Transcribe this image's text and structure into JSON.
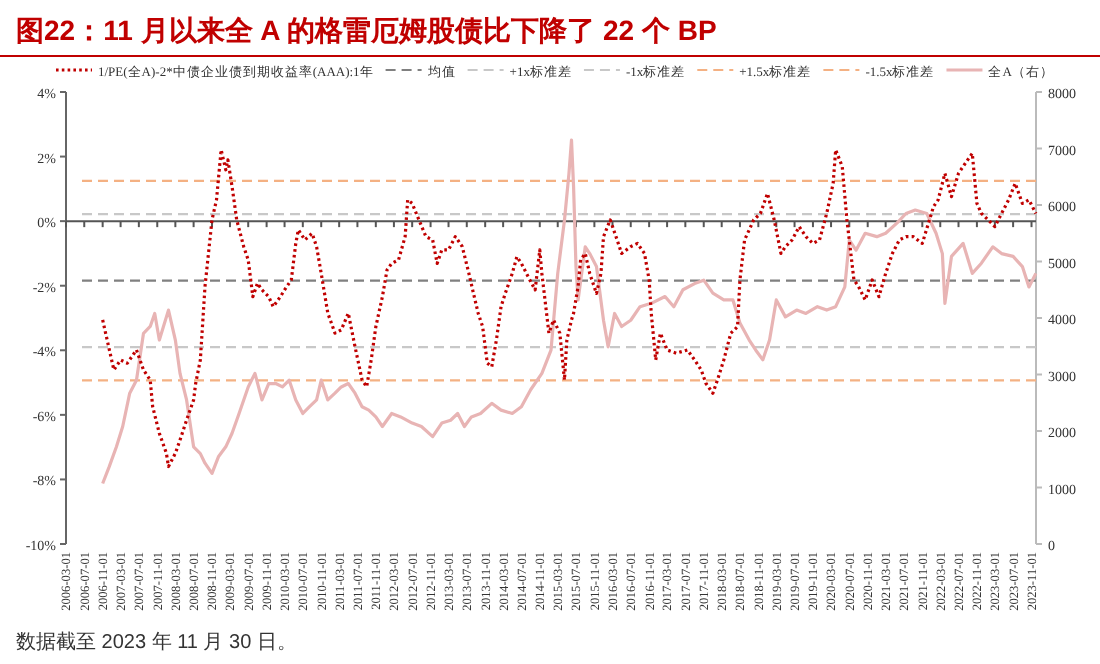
{
  "chart_data": {
    "type": "line",
    "title": "图22：11 月以来全 A 的格雷厄姆股债比下降了 22 个 BP",
    "annotations": [
      "数据截至 2023 年 11 月 30 日。"
    ],
    "legend": "top",
    "xlim": [
      "2006-03-01",
      "2023-12-01"
    ],
    "xticks": [
      "2006-03-01",
      "2006-07-01",
      "2006-11-01",
      "2007-03-01",
      "2007-07-01",
      "2007-11-01",
      "2008-03-01",
      "2008-07-01",
      "2008-11-01",
      "2009-03-01",
      "2009-07-01",
      "2009-11-01",
      "2010-03-01",
      "2010-07-01",
      "2010-11-01",
      "2011-03-01",
      "2011-07-01",
      "2011-11-01",
      "2012-03-01",
      "2012-07-01",
      "2012-11-01",
      "2013-03-01",
      "2013-07-01",
      "2013-11-01",
      "2014-03-01",
      "2014-07-01",
      "2014-11-01",
      "2015-03-01",
      "2015-07-01",
      "2015-11-01",
      "2016-03-01",
      "2016-07-01",
      "2016-11-01",
      "2017-03-01",
      "2017-07-01",
      "2017-11-01",
      "2018-03-01",
      "2018-07-01",
      "2018-11-01",
      "2019-03-01",
      "2019-07-01",
      "2019-11-01",
      "2020-03-01",
      "2020-07-01",
      "2020-11-01",
      "2021-03-01",
      "2021-07-01",
      "2021-11-01",
      "2022-03-01",
      "2022-07-01",
      "2022-11-01",
      "2023-03-01",
      "2023-07-01",
      "2023-11-01"
    ],
    "ylim": [
      -10,
      4
    ],
    "yticks": [
      {
        "value": -10,
        "label": "-10%"
      },
      {
        "value": -8,
        "label": "-8%"
      },
      {
        "value": -6,
        "label": "-6%"
      },
      {
        "value": -4,
        "label": "-4%"
      },
      {
        "value": -2,
        "label": "-2%"
      },
      {
        "value": 0,
        "label": "0%"
      },
      {
        "value": 2,
        "label": "2%"
      },
      {
        "value": 4,
        "label": "4%"
      }
    ],
    "y2lim": [
      0,
      8000
    ],
    "y2ticks": [
      0,
      1000,
      2000,
      3000,
      4000,
      5000,
      6000,
      7000,
      8000
    ],
    "series": [
      {
        "name": "1/PE(全A)-2*中债企业债到期收益率(AAA):1年",
        "line_style": "dotted",
        "color": "#c00000",
        "x": [
          "2006-11-01",
          "2006-12-01",
          "2007-01-15",
          "2007-03-01",
          "2007-04-15",
          "2007-06-15",
          "2007-08-01",
          "2007-09-15",
          "2007-10-01",
          "2007-11-15",
          "2008-01-01",
          "2008-01-15",
          "2008-03-01",
          "2008-04-01",
          "2008-05-15",
          "2008-07-01",
          "2008-07-15",
          "2008-08-15",
          "2008-09-01",
          "2008-09-15",
          "2008-11-01",
          "2008-12-01",
          "2009-01-01",
          "2009-02-01",
          "2009-02-15",
          "2009-03-15",
          "2009-04-15",
          "2009-06-01",
          "2009-07-01",
          "2009-08-01",
          "2009-09-01",
          "2009-10-01",
          "2009-11-15",
          "2009-12-15",
          "2010-02-01",
          "2010-03-01",
          "2010-04-15",
          "2010-05-15",
          "2010-06-01",
          "2010-07-15",
          "2010-09-01",
          "2010-10-01",
          "2010-11-01",
          "2010-12-15",
          "2011-02-01",
          "2011-03-15",
          "2011-05-01",
          "2011-06-15",
          "2011-08-01",
          "2011-09-01",
          "2011-10-01",
          "2011-11-01",
          "2011-12-15",
          "2012-01-15",
          "2012-02-15",
          "2012-04-01",
          "2012-05-15",
          "2012-06-01",
          "2012-07-01",
          "2012-08-15",
          "2012-10-01",
          "2012-11-15",
          "2012-12-15",
          "2013-01-15",
          "2013-03-01",
          "2013-04-15",
          "2013-05-01",
          "2013-06-01",
          "2013-07-15",
          "2013-08-15",
          "2013-09-15",
          "2013-10-15",
          "2013-11-15",
          "2013-12-15",
          "2014-01-15",
          "2014-02-15",
          "2014-03-15",
          "2014-05-01",
          "2014-06-01",
          "2014-07-01",
          "2014-08-15",
          "2014-10-01",
          "2014-11-01",
          "2014-11-15",
          "2015-01-01",
          "2015-02-01",
          "2015-03-15",
          "2015-04-15",
          "2015-05-01",
          "2015-06-01",
          "2015-06-15",
          "2015-07-15",
          "2015-08-01",
          "2015-09-01",
          "2015-10-01",
          "2015-11-15",
          "2015-12-15",
          "2016-01-01",
          "2016-02-15",
          "2016-04-01",
          "2016-05-01",
          "2016-07-01",
          "2016-08-15",
          "2016-10-01",
          "2016-11-01",
          "2016-11-15",
          "2016-12-15",
          "2017-01-15",
          "2017-03-01",
          "2017-05-01",
          "2017-07-15",
          "2017-09-01",
          "2017-10-15",
          "2017-11-15",
          "2018-01-01",
          "2018-02-01",
          "2018-03-15",
          "2018-05-01",
          "2018-06-15",
          "2018-07-01",
          "2018-08-01",
          "2018-09-01",
          "2018-10-01",
          "2018-11-15",
          "2019-01-01",
          "2019-02-15",
          "2019-04-01",
          "2019-05-01",
          "2019-06-15",
          "2019-08-01",
          "2019-09-15",
          "2019-11-01",
          "2019-12-15",
          "2020-02-01",
          "2020-03-15",
          "2020-04-01",
          "2020-05-15",
          "2020-06-15",
          "2020-08-01",
          "2020-09-01",
          "2020-10-15",
          "2020-12-01",
          "2021-01-15",
          "2021-03-01",
          "2021-04-15",
          "2021-06-01",
          "2021-07-15",
          "2021-09-01",
          "2021-11-01",
          "2022-01-15",
          "2022-02-15",
          "2022-04-01",
          "2022-05-15",
          "2022-07-01",
          "2022-08-15",
          "2022-10-01",
          "2022-11-01",
          "2022-12-01",
          "2023-01-15",
          "2023-03-01",
          "2023-04-15",
          "2023-06-01",
          "2023-07-15",
          "2023-09-01",
          "2023-10-15",
          "2023-11-30"
        ],
        "values": [
          -3.06,
          -3.68,
          -4.61,
          -4.3,
          -4.4,
          -3.99,
          -4.61,
          -4.92,
          -5.74,
          -6.57,
          -7.19,
          -7.6,
          -7.19,
          -6.78,
          -6.16,
          -5.54,
          -5.02,
          -4.3,
          -3.06,
          -2.03,
          0.04,
          0.66,
          2.21,
          1.59,
          1.9,
          1.07,
          0.04,
          -0.79,
          -1.2,
          -2.34,
          -1.92,
          -2.13,
          -2.34,
          -2.65,
          -2.34,
          -2.13,
          -1.82,
          -0.69,
          -0.27,
          -0.58,
          -0.38,
          -0.79,
          -1.62,
          -2.85,
          -3.47,
          -3.37,
          -2.85,
          -3.89,
          -4.92,
          -5.13,
          -4.3,
          -3.27,
          -2.34,
          -1.51,
          -1.31,
          -1.2,
          -0.48,
          0.66,
          0.55,
          0.04,
          -0.48,
          -0.58,
          -1.31,
          -0.89,
          -0.89,
          -0.48,
          -0.58,
          -0.79,
          -1.62,
          -2.24,
          -2.85,
          -3.27,
          -4.4,
          -4.51,
          -3.68,
          -2.65,
          -2.24,
          -1.62,
          -1.1,
          -1.31,
          -1.72,
          -2.13,
          -0.89,
          -1.62,
          -3.47,
          -3.06,
          -3.47,
          -4.92,
          -3.68,
          -3.06,
          -2.85,
          -2.03,
          -1.2,
          -1.0,
          -1.62,
          -2.24,
          -1.62,
          -0.48,
          0.04,
          -0.58,
          -1.0,
          -0.79,
          -0.69,
          -1.0,
          -1.82,
          -2.85,
          -4.3,
          -3.47,
          -3.99,
          -4.09,
          -3.99,
          -4.3,
          -4.61,
          -5.02,
          -5.33,
          -4.92,
          -4.3,
          -3.47,
          -3.27,
          -1.82,
          -0.58,
          -0.27,
          0.04,
          0.24,
          0.86,
          0.04,
          -1.0,
          -0.79,
          -0.58,
          -0.17,
          -0.48,
          -0.69,
          -0.58,
          0.24,
          1.17,
          2.21,
          1.69,
          0.04,
          -1.82,
          -2.03,
          -2.44,
          -1.82,
          -2.34,
          -1.62,
          -1.0,
          -0.58,
          -0.48,
          -0.48,
          -0.69,
          0.45,
          0.66,
          1.48,
          0.76,
          1.48,
          1.79,
          2.1,
          0.55,
          0.24,
          0.04,
          -0.17,
          0.24,
          0.66,
          1.17,
          0.55,
          0.66,
          0.24
        ]
      },
      {
        "name": "全A（右）",
        "line_style": "solid",
        "color": "#e8b4b4",
        "axis": "y2",
        "x": [
          "2006-11-01",
          "2006-12-15",
          "2007-02-01",
          "2007-03-15",
          "2007-05-01",
          "2007-06-15",
          "2007-08-01",
          "2007-09-15",
          "2007-10-15",
          "2007-11-15",
          "2008-01-15",
          "2008-03-01",
          "2008-04-01",
          "2008-05-15",
          "2008-07-01",
          "2008-08-15",
          "2008-09-15",
          "2008-11-01",
          "2008-12-15",
          "2009-02-01",
          "2009-03-15",
          "2009-05-01",
          "2009-07-01",
          "2009-08-15",
          "2009-10-01",
          "2009-11-15",
          "2010-01-01",
          "2010-02-15",
          "2010-04-01",
          "2010-05-15",
          "2010-07-01",
          "2010-08-15",
          "2010-10-01",
          "2010-11-01",
          "2010-12-15",
          "2011-02-01",
          "2011-03-15",
          "2011-05-01",
          "2011-06-15",
          "2011-08-01",
          "2011-09-15",
          "2011-11-01",
          "2011-12-15",
          "2012-02-15",
          "2012-04-15",
          "2012-07-01",
          "2012-09-01",
          "2012-11-15",
          "2013-01-15",
          "2013-03-15",
          "2013-05-01",
          "2013-06-15",
          "2013-08-01",
          "2013-10-01",
          "2013-12-15",
          "2014-02-15",
          "2014-05-01",
          "2014-07-01",
          "2014-09-01",
          "2014-11-15",
          "2015-01-15",
          "2015-03-01",
          "2015-04-15",
          "2015-05-15",
          "2015-06-01",
          "2015-06-15",
          "2015-07-01",
          "2015-07-15",
          "2015-09-01",
          "2015-10-01",
          "2015-11-15",
          "2016-01-01",
          "2016-02-01",
          "2016-03-15",
          "2016-05-01",
          "2016-07-01",
          "2016-09-01",
          "2016-11-15",
          "2017-02-15",
          "2017-04-15",
          "2017-06-15",
          "2017-09-01",
          "2017-11-01",
          "2018-01-01",
          "2018-03-15",
          "2018-05-15",
          "2018-07-01",
          "2018-09-01",
          "2018-10-15",
          "2018-12-01",
          "2019-01-15",
          "2019-03-01",
          "2019-05-01",
          "2019-07-15",
          "2019-09-15",
          "2019-12-01",
          "2020-02-01",
          "2020-04-01",
          "2020-06-01",
          "2020-07-01",
          "2020-08-15",
          "2020-10-15",
          "2021-01-01",
          "2021-03-01",
          "2021-05-15",
          "2021-07-15",
          "2021-09-15",
          "2021-12-01",
          "2022-02-01",
          "2022-03-15",
          "2022-04-01",
          "2022-05-15",
          "2022-08-01",
          "2022-10-01",
          "2022-12-01",
          "2023-02-15",
          "2023-04-15",
          "2023-07-01",
          "2023-09-01",
          "2023-10-15",
          "2023-11-30"
        ],
        "values": [
          1070,
          1370,
          1720,
          2080,
          2670,
          2900,
          3730,
          3850,
          4080,
          3610,
          4140,
          3610,
          3020,
          2550,
          1720,
          1600,
          1430,
          1250,
          1550,
          1720,
          1960,
          2310,
          2780,
          3020,
          2550,
          2840,
          2840,
          2780,
          2900,
          2550,
          2310,
          2430,
          2550,
          2900,
          2550,
          2670,
          2780,
          2840,
          2670,
          2430,
          2370,
          2250,
          2080,
          2310,
          2250,
          2140,
          2080,
          1900,
          2140,
          2190,
          2310,
          2080,
          2250,
          2310,
          2490,
          2370,
          2310,
          2430,
          2730,
          3020,
          3430,
          4790,
          5730,
          6560,
          7150,
          6320,
          4910,
          4320,
          5260,
          5140,
          4910,
          3960,
          3490,
          4080,
          3850,
          3960,
          4200,
          4260,
          4380,
          4200,
          4500,
          4610,
          4670,
          4440,
          4320,
          4320,
          3910,
          3610,
          3430,
          3260,
          3610,
          4320,
          4020,
          4140,
          4080,
          4200,
          4140,
          4200,
          4550,
          5380,
          5200,
          5500,
          5440,
          5500,
          5680,
          5850,
          5910,
          5850,
          5500,
          5140,
          4260,
          5090,
          5320,
          4790,
          4970,
          5260,
          5140,
          5090,
          4910,
          4550,
          4790
        ]
      }
    ],
    "ref_lines": [
      {
        "axis": "y",
        "value": -1.84,
        "label": "均值",
        "color": "#808080",
        "line_style": "dashed"
      },
      {
        "axis": "y",
        "value": 0.22,
        "label": "+1x标准差",
        "color": "#c8c8c8",
        "line_style": "dashed"
      },
      {
        "axis": "y",
        "value": -3.9,
        "label": "-1x标准差",
        "color": "#c8c8c8",
        "line_style": "dashed"
      },
      {
        "axis": "y",
        "value": 1.25,
        "label": "+1.5x标准差",
        "color": "#f4b183",
        "line_style": "dashed"
      },
      {
        "axis": "y",
        "value": -4.93,
        "label": "-1.5x标准差",
        "color": "#f4b183",
        "line_style": "dashed"
      }
    ]
  }
}
